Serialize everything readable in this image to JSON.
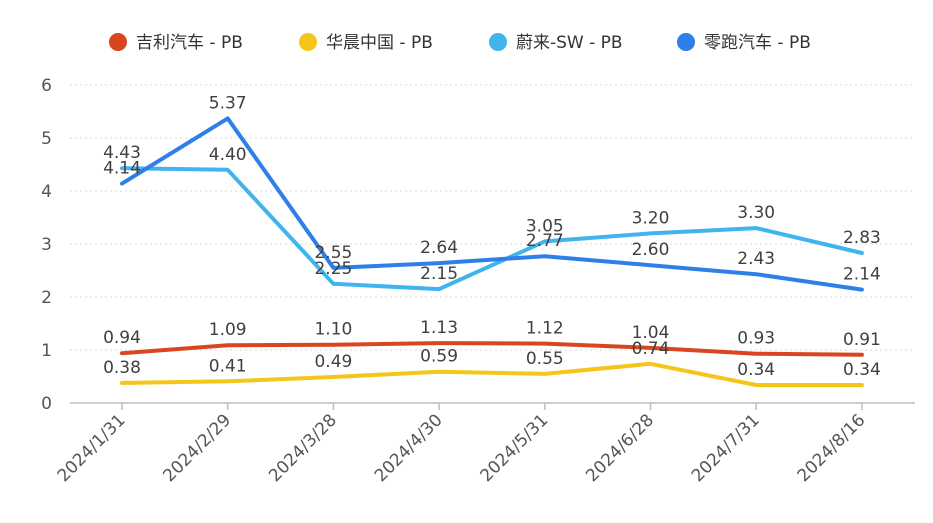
{
  "chart_data": {
    "type": "line",
    "categories": [
      "2024/1/31",
      "2024/2/29",
      "2024/3/28",
      "2024/4/30",
      "2024/5/31",
      "2024/6/28",
      "2024/7/31",
      "2024/8/16"
    ],
    "series": [
      {
        "name": "吉利汽车 - PB",
        "color": "#d9461e",
        "values": [
          0.94,
          1.09,
          1.1,
          1.13,
          1.12,
          1.04,
          0.93,
          0.91
        ],
        "labels": [
          "0.94",
          "1.09",
          "1.10",
          "1.13",
          "1.12",
          "1.04",
          "0.93",
          "0.91"
        ]
      },
      {
        "name": "华晨中国 - PB",
        "color": "#f5c518",
        "values": [
          0.38,
          0.41,
          0.49,
          0.59,
          0.55,
          0.74,
          0.34,
          0.34
        ],
        "labels": [
          "0.38",
          "0.41",
          "0.49",
          "0.59",
          "0.55",
          "0.74",
          "0.34",
          "0.34"
        ]
      },
      {
        "name": "蔚来-SW - PB",
        "color": "#40b4ec",
        "values": [
          4.43,
          4.4,
          2.25,
          2.15,
          3.05,
          3.2,
          3.3,
          2.83
        ],
        "labels": [
          "4.43",
          "4.40",
          "2.25",
          "2.15",
          "3.05",
          "3.20",
          "3.30",
          "2.83"
        ]
      },
      {
        "name": "零跑汽车 - PB",
        "color": "#2f7fe8",
        "values": [
          4.14,
          5.37,
          2.55,
          2.64,
          2.77,
          2.6,
          2.43,
          2.14
        ],
        "labels": [
          "4.14",
          "5.37",
          "2.55",
          "2.64",
          "2.77",
          "2.60",
          "2.43",
          "2.14"
        ]
      }
    ],
    "yticks": [
      "0",
      "1",
      "2",
      "3",
      "4",
      "5",
      "6"
    ],
    "ylim": [
      0,
      6
    ],
    "grid": true,
    "legend": "top-center",
    "title": "",
    "xlabel": "",
    "ylabel": ""
  }
}
